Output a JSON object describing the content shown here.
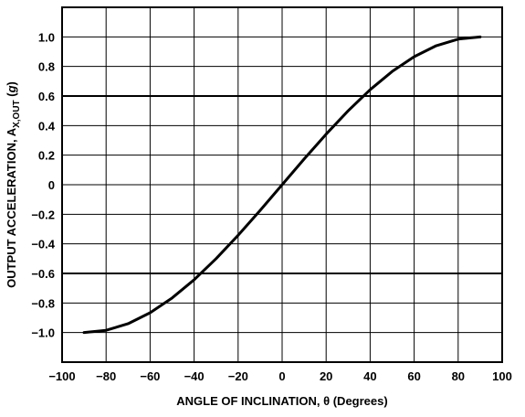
{
  "chart_data": {
    "type": "line",
    "xlabel": "ANGLE OF INCLINATION, θ (Degrees)",
    "ylabel": {
      "main": "OUTPUT ACCELERATION, A",
      "subscript": "X,OUT",
      "unit_open": " (",
      "unit": "g",
      "unit_close": ")"
    },
    "xlim": [
      -100,
      100
    ],
    "ylim": [
      -1.2,
      1.2
    ],
    "x_ticks": [
      -100,
      -80,
      -60,
      -40,
      -20,
      0,
      20,
      40,
      60,
      80,
      100
    ],
    "x_tick_labels": [
      "−100",
      "−80",
      "−60",
      "−40",
      "−20",
      "0",
      "20",
      "40",
      "60",
      "80",
      "100"
    ],
    "y_ticks": [
      1.0,
      0.8,
      0.6,
      0.4,
      0.2,
      0,
      -0.2,
      -0.4,
      -0.6,
      -0.8,
      -1.0
    ],
    "y_tick_labels": [
      "1.0",
      "0.8",
      "0.6",
      "0.4",
      "0.2",
      "0",
      "−0.2",
      "−0.4",
      "−0.6",
      "−0.8",
      "−1.0"
    ],
    "emphasized_gridlines_y": [
      0.6,
      -0.6
    ],
    "grid": true,
    "series": [
      {
        "x": [
          -90,
          -80,
          -70,
          -60,
          -50,
          -40,
          -30,
          -20,
          -10,
          0,
          10,
          20,
          30,
          40,
          50,
          60,
          70,
          80,
          90
        ],
        "values": [
          -1.0,
          -0.985,
          -0.94,
          -0.866,
          -0.766,
          -0.643,
          -0.5,
          -0.342,
          -0.174,
          0,
          0.174,
          0.342,
          0.5,
          0.643,
          0.766,
          0.866,
          0.94,
          0.985,
          1.0
        ],
        "color": "#000000"
      }
    ]
  }
}
